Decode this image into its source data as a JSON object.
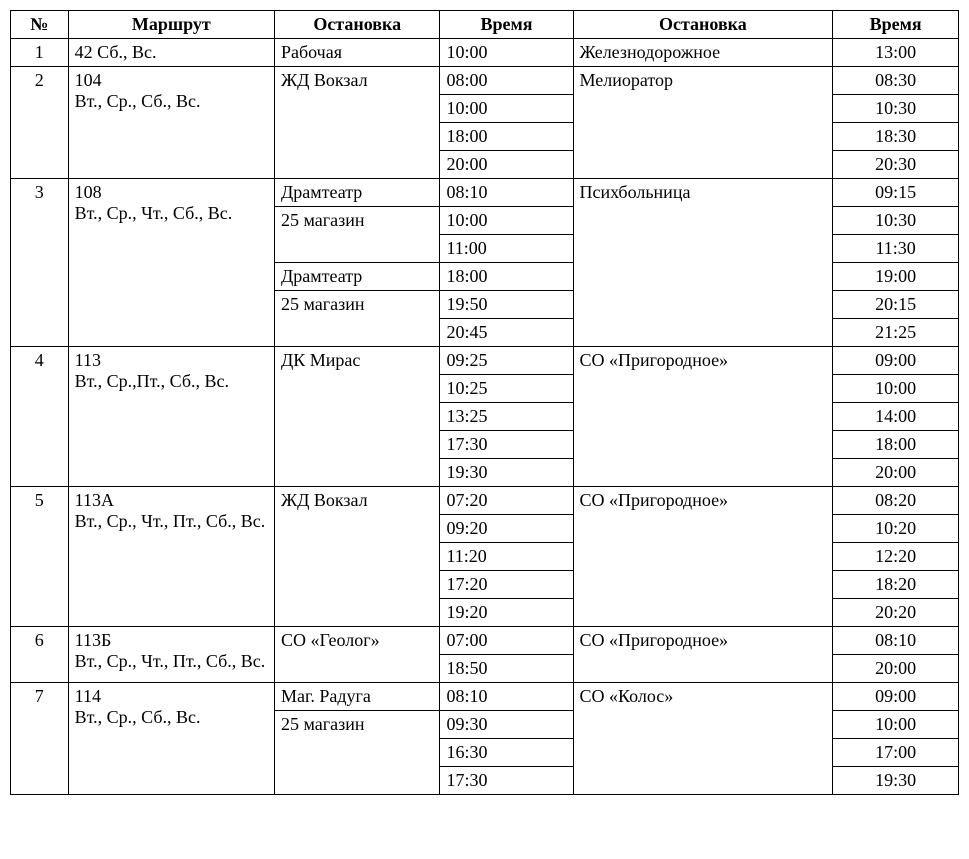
{
  "headers": {
    "num": "№",
    "route": "Маршрут",
    "stop1": "Остановка",
    "time1": "Время",
    "stop2": "Остановка",
    "time2": "Время"
  },
  "rows": [
    {
      "num": "1",
      "route": "42 Сб., Вс.",
      "stop1": "Рабочая",
      "time1": "10:00",
      "stop2": "Железнодорожное",
      "time2": "13:00",
      "span": 1
    },
    {
      "num": "2",
      "route": "104\nВт., Ср., Сб., Вс.",
      "stop1": "ЖД Вокзал",
      "stop2": "Мелиоратор",
      "span": 4,
      "times": [
        {
          "t1": "08:00",
          "t2": "08:30"
        },
        {
          "t1": "10:00",
          "t2": "10:30"
        },
        {
          "t1": "18:00",
          "t2": "18:30"
        },
        {
          "t1": "20:00",
          "t2": "20:30"
        }
      ]
    },
    {
      "num": "3",
      "route": "108\nВт., Ср., Чт., Сб., Вс.",
      "stop2": "Психбольница",
      "span": 6,
      "stopRows": [
        {
          "stop1": "Драмтеатр",
          "stop1span": 1,
          "t1": "08:10",
          "t2": "09:15"
        },
        {
          "stop1": "25 магазин",
          "stop1span": 2,
          "t1": "10:00",
          "t2": "10:30"
        },
        {
          "t1": "11:00",
          "t2": "11:30"
        },
        {
          "stop1": "Драмтеатр",
          "stop1span": 1,
          "t1": "18:00",
          "t2": "19:00"
        },
        {
          "stop1": "25 магазин",
          "stop1span": 2,
          "t1": "19:50",
          "t2": "20:15"
        },
        {
          "t1": "20:45",
          "t2": "21:25"
        }
      ]
    },
    {
      "num": "4",
      "route": "113\nВт., Ср.,Пт., Сб., Вс.",
      "stop1": "ДК Мирас",
      "stop2": "СО «Пригородное»",
      "span": 5,
      "times": [
        {
          "t1": "09:25",
          "t2": "09:00"
        },
        {
          "t1": "10:25",
          "t2": "10:00"
        },
        {
          "t1": "13:25",
          "t2": "14:00"
        },
        {
          "t1": "17:30",
          "t2": "18:00"
        },
        {
          "t1": "19:30",
          "t2": "20:00"
        }
      ]
    },
    {
      "num": "5",
      "route": "113А\nВт., Ср., Чт., Пт., Сб., Вс.",
      "stop1": "ЖД Вокзал",
      "stop2": "СО «Пригородное»",
      "span": 5,
      "times": [
        {
          "t1": "07:20",
          "t2": "08:20"
        },
        {
          "t1": "09:20",
          "t2": "10:20"
        },
        {
          "t1": "11:20",
          "t2": "12:20"
        },
        {
          "t1": "17:20",
          "t2": "18:20"
        },
        {
          "t1": "19:20",
          "t2": "20:20"
        }
      ]
    },
    {
      "num": "6",
      "route": "113Б\nВт., Ср., Чт., Пт., Сб., Вс.",
      "stop1": "СО «Геолог»",
      "stop2": "СО «Пригородное»",
      "span": 2,
      "extraRouteRows": 1,
      "times": [
        {
          "t1": "07:00",
          "t2": "08:10"
        },
        {
          "t1": "18:50",
          "t2": "20:00"
        }
      ]
    },
    {
      "num": "7",
      "route": "114\nВт., Ср., Сб., Вс.",
      "stop2": "СО «Колос»",
      "span": 4,
      "stopRows": [
        {
          "stop1": "Маг. Радуга",
          "stop1span": 1,
          "t1": "08:10",
          "t2": "09:00"
        },
        {
          "stop1": "25 магазин",
          "stop1span": 3,
          "t1": "09:30",
          "t2": "10:00"
        },
        {
          "t1": "16:30",
          "t2": "17:00"
        },
        {
          "t1": "17:30",
          "t2": "19:30"
        }
      ]
    }
  ]
}
